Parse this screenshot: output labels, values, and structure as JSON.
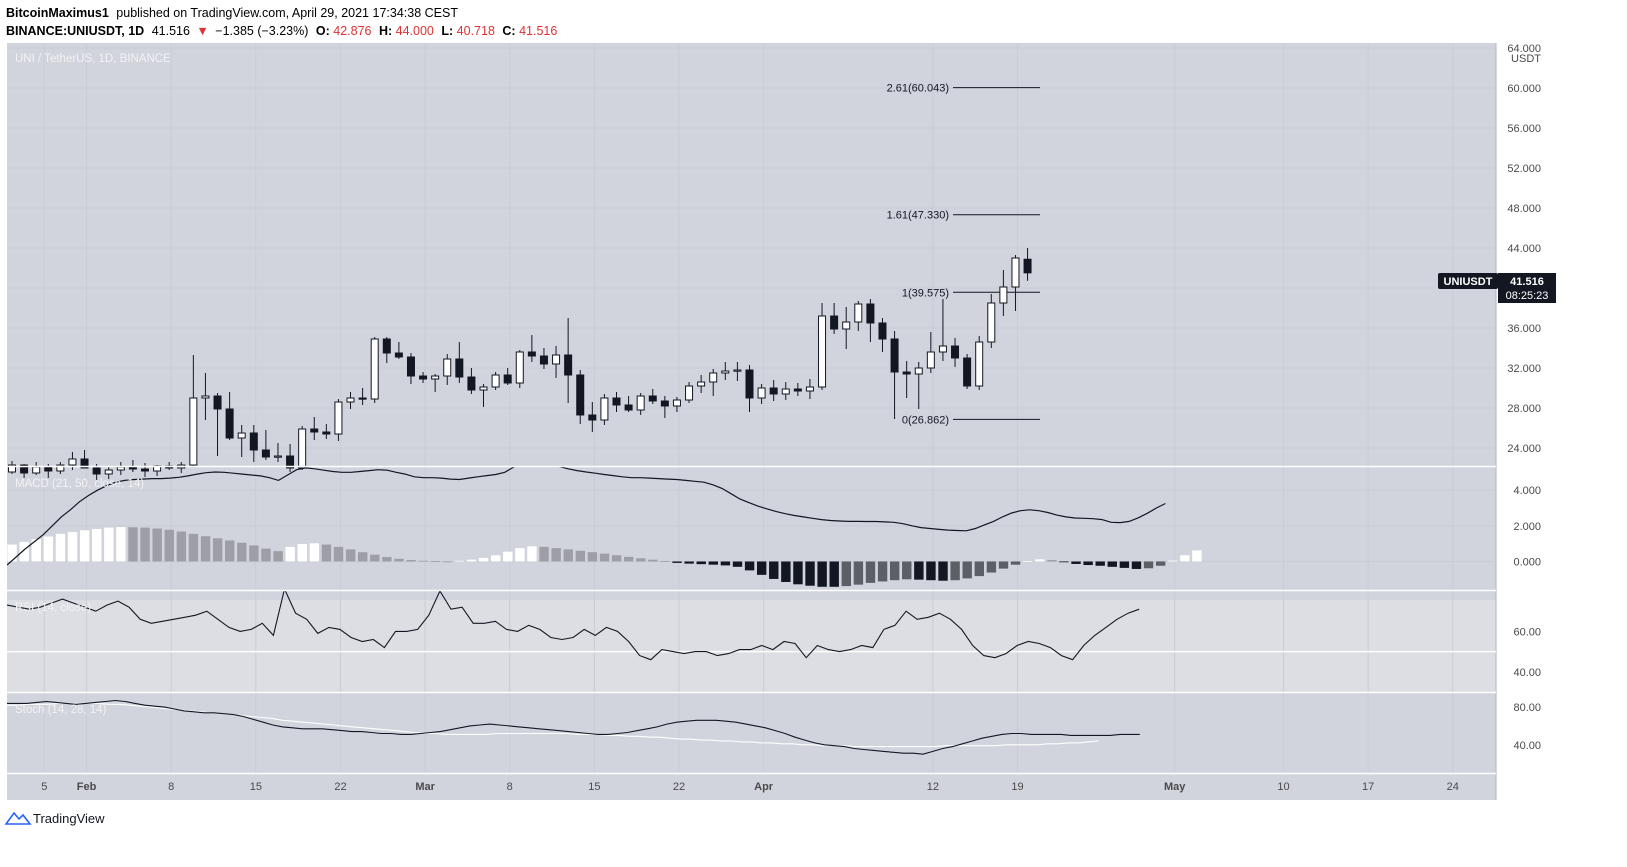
{
  "header": {
    "author": "BitcoinMaximus1",
    "published_text": "published on TradingView.com, April 29, 2021 17:34:38 CEST",
    "symbol_prefix": "BINANCE:UNIUSDT, 1D",
    "last": "41.516",
    "down_arrow": "▼",
    "change": "−1.385 (−3.23%)",
    "o_label": "O:",
    "o_value": "42.876",
    "h_label": "H:",
    "h_value": "44.000",
    "l_label": "L:",
    "l_value": "40.718",
    "c_label": "C:",
    "c_value": "41.516"
  },
  "footer": {
    "brand": "TradingView"
  },
  "colors": {
    "price_bg": "#d1d4dc",
    "bull": "#ffffff",
    "bear": "#131722",
    "hist_light": "#9e9ea6",
    "hist_dark": "#5d5f66"
  },
  "chart_data": {
    "type": "candlestick",
    "title": "UNI / TetherUS, 1D, BINANCE",
    "currency": "USDT",
    "symbol_tag": "UNIUSDT",
    "last_price_label": "41.516",
    "countdown": "08:25:23",
    "price_axis": {
      "ticks": [
        "64.000",
        "60.000",
        "56.000",
        "52.000",
        "48.000",
        "44.000",
        "40.000",
        "36.000",
        "32.000",
        "28.000",
        "24.000"
      ],
      "range": [
        22.2,
        64.5
      ]
    },
    "time_axis": {
      "labels": [
        "5",
        "Feb",
        "8",
        "15",
        "22",
        "Mar",
        "8",
        "15",
        "22",
        "Apr",
        "12",
        "19",
        "May",
        "10",
        "17",
        "24"
      ],
      "bold": [
        "Feb",
        "Mar",
        "Apr",
        "May"
      ]
    },
    "candles": [
      [
        21.6,
        22.7,
        21.4,
        22.3
      ],
      [
        22.3,
        22.4,
        21.0,
        21.5
      ],
      [
        21.5,
        22.6,
        21.3,
        22.1
      ],
      [
        22.1,
        22.4,
        21.0,
        21.7
      ],
      [
        21.7,
        22.6,
        21.4,
        22.3
      ],
      [
        22.3,
        23.6,
        21.8,
        22.9
      ],
      [
        22.9,
        23.8,
        22.2,
        22.0
      ],
      [
        22.0,
        22.4,
        20.8,
        21.4
      ],
      [
        21.4,
        22.2,
        20.9,
        21.8
      ],
      [
        21.8,
        22.6,
        21.3,
        22.1
      ],
      [
        22.1,
        22.8,
        21.6,
        21.9
      ],
      [
        21.9,
        22.5,
        21.1,
        21.7
      ],
      [
        21.7,
        22.3,
        21.2,
        22.2
      ],
      [
        22.2,
        22.6,
        21.8,
        22.0
      ],
      [
        22.0,
        22.6,
        21.5,
        22.3
      ],
      [
        22.3,
        33.3,
        22.2,
        29.0
      ],
      [
        29.0,
        31.5,
        26.8,
        29.2
      ],
      [
        29.2,
        29.5,
        23.2,
        27.9
      ],
      [
        27.9,
        29.6,
        24.8,
        25.0
      ],
      [
        25.0,
        26.3,
        23.1,
        25.5
      ],
      [
        25.5,
        26.3,
        22.6,
        23.8
      ],
      [
        23.8,
        25.8,
        22.8,
        23.1
      ],
      [
        23.1,
        24.5,
        22.6,
        23.2
      ],
      [
        23.2,
        24.4,
        21.6,
        22.0
      ],
      [
        22.0,
        26.2,
        21.8,
        25.9
      ],
      [
        25.9,
        27.1,
        24.8,
        25.6
      ],
      [
        25.6,
        26.4,
        24.9,
        25.4
      ],
      [
        25.4,
        28.9,
        24.7,
        28.6
      ],
      [
        28.6,
        29.6,
        27.9,
        29.0
      ],
      [
        29.0,
        30.0,
        28.3,
        28.9
      ],
      [
        28.9,
        35.1,
        28.5,
        34.9
      ],
      [
        34.9,
        35.1,
        32.5,
        33.5
      ],
      [
        33.5,
        34.6,
        32.9,
        33.1
      ],
      [
        33.1,
        33.5,
        30.4,
        31.2
      ],
      [
        31.2,
        31.6,
        30.5,
        30.9
      ],
      [
        30.9,
        31.4,
        29.6,
        31.2
      ],
      [
        31.2,
        33.4,
        30.3,
        32.9
      ],
      [
        32.9,
        34.6,
        30.5,
        31.1
      ],
      [
        31.1,
        32.0,
        29.4,
        29.8
      ],
      [
        29.8,
        30.4,
        28.1,
        30.1
      ],
      [
        30.1,
        31.6,
        29.8,
        31.3
      ],
      [
        31.3,
        32.0,
        30.3,
        30.5
      ],
      [
        30.5,
        33.8,
        30.0,
        33.6
      ],
      [
        33.6,
        35.3,
        32.6,
        33.2
      ],
      [
        33.2,
        34.0,
        31.9,
        32.4
      ],
      [
        32.4,
        34.2,
        31.0,
        33.3
      ],
      [
        33.3,
        37.0,
        28.5,
        31.3
      ],
      [
        31.3,
        31.8,
        26.4,
        27.3
      ],
      [
        27.3,
        28.6,
        25.6,
        26.8
      ],
      [
        26.8,
        29.4,
        26.3,
        29.0
      ],
      [
        29.0,
        29.6,
        27.6,
        28.3
      ],
      [
        28.3,
        29.2,
        27.6,
        27.8
      ],
      [
        27.8,
        29.5,
        27.3,
        29.2
      ],
      [
        29.2,
        29.9,
        28.4,
        28.7
      ],
      [
        28.7,
        29.2,
        27.0,
        28.2
      ],
      [
        28.2,
        29.1,
        27.6,
        28.8
      ],
      [
        28.8,
        30.6,
        28.5,
        30.2
      ],
      [
        30.2,
        31.3,
        29.5,
        30.6
      ],
      [
        30.6,
        31.9,
        29.2,
        31.5
      ],
      [
        31.5,
        32.6,
        30.8,
        31.7
      ],
      [
        31.7,
        32.6,
        30.7,
        31.8
      ],
      [
        31.8,
        32.3,
        27.6,
        29.0
      ],
      [
        29.0,
        30.4,
        28.4,
        30.0
      ],
      [
        30.0,
        30.8,
        28.7,
        29.4
      ],
      [
        29.4,
        30.6,
        28.8,
        29.9
      ],
      [
        29.9,
        30.5,
        29.2,
        29.7
      ],
      [
        29.7,
        30.9,
        28.9,
        30.1
      ],
      [
        30.1,
        38.5,
        29.8,
        37.2
      ],
      [
        37.2,
        38.5,
        35.4,
        35.9
      ],
      [
        35.9,
        38.1,
        33.9,
        36.6
      ],
      [
        36.6,
        38.7,
        35.7,
        38.4
      ],
      [
        38.4,
        38.9,
        34.6,
        36.5
      ],
      [
        36.5,
        37.0,
        33.6,
        34.9
      ],
      [
        34.9,
        35.7,
        26.9,
        31.6
      ],
      [
        31.6,
        32.7,
        29.0,
        31.4
      ],
      [
        31.4,
        32.6,
        27.9,
        32.0
      ],
      [
        32.0,
        35.6,
        31.5,
        33.6
      ],
      [
        33.6,
        38.9,
        32.7,
        34.2
      ],
      [
        34.2,
        35.0,
        32.1,
        33.0
      ],
      [
        33.0,
        33.4,
        29.9,
        30.2
      ],
      [
        30.2,
        35.2,
        29.8,
        34.6
      ],
      [
        34.6,
        39.4,
        34.0,
        38.5
      ],
      [
        38.5,
        41.8,
        37.2,
        40.1
      ],
      [
        40.1,
        43.3,
        37.7,
        43.0
      ],
      [
        42.876,
        44.0,
        40.718,
        41.516
      ]
    ],
    "fib_levels": [
      {
        "label": "2.61(60.043)",
        "value": 60.043
      },
      {
        "label": "1.61(47.330)",
        "value": 47.33
      },
      {
        "label": "1(39.575)",
        "value": 39.575
      },
      {
        "label": "0(26.862)",
        "value": 26.862
      }
    ],
    "macd": {
      "label": "MACD (21, 50, close, 14)",
      "ticks": [
        "4.000",
        "2.000",
        "0.000"
      ],
      "range": [
        -1.6,
        5.3
      ],
      "line": [
        -0.2,
        0.25,
        0.7,
        1.1,
        1.5,
        2.0,
        2.5,
        2.9,
        3.35,
        3.7,
        4.0,
        4.25,
        4.45,
        4.55,
        4.6,
        4.62,
        4.65,
        4.65,
        4.68,
        4.72,
        4.8,
        4.9,
        4.98,
        5.02,
        5.0,
        4.95,
        4.9,
        4.85,
        4.8,
        4.7,
        4.55,
        4.85,
        5.15,
        5.25,
        5.2,
        5.12,
        5.05,
        5.0,
        5.0,
        5.05,
        5.1,
        5.15,
        5.12,
        5.0,
        4.9,
        4.75,
        4.7,
        4.7,
        4.68,
        4.62,
        4.6,
        4.68,
        4.75,
        4.82,
        4.88,
        5.0,
        5.3,
        5.55,
        5.7,
        5.62,
        5.48,
        5.32,
        5.2,
        5.1,
        5.02,
        4.95,
        4.88,
        4.82,
        4.75,
        4.7,
        4.7,
        4.68,
        4.65,
        4.62,
        4.6,
        4.55,
        4.5,
        4.45,
        4.3,
        4.1,
        3.8,
        3.5,
        3.3,
        3.1,
        2.95,
        2.8,
        2.68,
        2.58,
        2.5,
        2.42,
        2.35,
        2.3,
        2.27,
        2.25,
        2.25,
        2.24,
        2.24,
        2.22,
        2.2,
        2.12,
        2.0,
        1.9,
        1.85,
        1.8,
        1.76,
        1.74,
        1.72,
        1.85,
        2.05,
        2.25,
        2.5,
        2.72,
        2.85,
        2.9,
        2.85,
        2.75,
        2.6,
        2.5,
        2.44,
        2.42,
        2.4,
        2.35,
        2.2,
        2.18,
        2.25,
        2.45,
        2.7,
        3.0,
        3.25
      ],
      "hist": [
        0.95,
        1.1,
        1.25,
        1.4,
        1.55,
        1.65,
        1.75,
        1.82,
        1.9,
        1.93,
        1.92,
        1.9,
        1.85,
        1.78,
        1.68,
        1.55,
        1.42,
        1.3,
        1.18,
        1.05,
        0.9,
        0.72,
        0.58,
        0.82,
        0.98,
        1.02,
        0.95,
        0.82,
        0.68,
        0.52,
        0.38,
        0.25,
        0.15,
        0.08,
        0.04,
        0.02,
        0.0,
        0.04,
        0.1,
        0.2,
        0.35,
        0.55,
        0.75,
        0.85,
        0.82,
        0.75,
        0.68,
        0.6,
        0.52,
        0.44,
        0.35,
        0.26,
        0.18,
        0.1,
        0.02,
        -0.08,
        -0.12,
        -0.15,
        -0.18,
        -0.22,
        -0.3,
        -0.5,
        -0.75,
        -0.98,
        -1.15,
        -1.28,
        -1.36,
        -1.42,
        -1.42,
        -1.38,
        -1.3,
        -1.2,
        -1.12,
        -1.05,
        -1.0,
        -1.02,
        -1.05,
        -1.08,
        -1.05,
        -0.95,
        -0.82,
        -0.62,
        -0.4,
        -0.18,
        0.02,
        0.12,
        0.08,
        -0.04,
        -0.14,
        -0.2,
        -0.24,
        -0.3,
        -0.36,
        -0.42,
        -0.38,
        -0.24,
        0.05,
        0.35,
        0.62
      ],
      "hist_dark_from": 61
    },
    "rsi": {
      "label": "RSI (14, close)",
      "ticks": [
        "60.00",
        "40.00"
      ],
      "range": [
        30,
        80
      ],
      "band": 50,
      "values": [
        73,
        72,
        71,
        72,
        74,
        76,
        74,
        72,
        70,
        73,
        75,
        72,
        66,
        64,
        65,
        66,
        67,
        68,
        70,
        66,
        62,
        60,
        61,
        64,
        58,
        81,
        69,
        66,
        59,
        62,
        61,
        57,
        55,
        56,
        52,
        60,
        60,
        61,
        68,
        80,
        71,
        72,
        64,
        64,
        65,
        61,
        60,
        63,
        61,
        57,
        56,
        57,
        61,
        58,
        62,
        60,
        55,
        48,
        46,
        51,
        50,
        49,
        50,
        50,
        48,
        49,
        51,
        51,
        53,
        51,
        55,
        54,
        47,
        53,
        51,
        50,
        51,
        53,
        52,
        61,
        63,
        70,
        66,
        67,
        69,
        66,
        61,
        53,
        48,
        47,
        49,
        53,
        55,
        54,
        52,
        48,
        46,
        53,
        58,
        62,
        66,
        69,
        71
      ]
    },
    "stoch": {
      "label": "Stoch (14, 28, 14)",
      "ticks": [
        "80.00",
        "40.00"
      ],
      "range": [
        10,
        95
      ],
      "k": [
        84,
        84,
        84,
        85,
        86,
        85,
        84,
        83,
        84,
        85,
        86,
        87,
        86,
        84,
        82,
        81,
        80,
        78,
        76,
        75,
        74,
        74,
        73,
        72,
        70,
        67,
        64,
        61,
        59,
        58,
        57,
        57,
        57,
        56,
        55,
        54,
        54,
        53,
        52,
        52,
        51,
        51,
        52,
        53,
        54,
        56,
        58,
        60,
        61,
        62,
        61,
        60,
        59,
        58,
        57,
        56,
        55,
        54,
        53,
        52,
        51,
        51,
        52,
        53,
        55,
        57,
        59,
        62,
        64,
        65,
        66,
        66,
        66,
        65,
        64,
        62,
        60,
        58,
        55,
        52,
        48,
        45,
        42,
        40,
        39,
        38,
        36,
        35,
        34,
        33,
        32,
        31,
        31,
        30,
        33,
        36,
        38,
        41,
        44,
        47,
        49,
        51,
        52,
        52,
        51,
        51,
        51,
        51,
        50,
        50,
        50,
        50,
        50,
        51,
        51,
        51
      ],
      "d": [
        82,
        82,
        83,
        83,
        83,
        84,
        84,
        84,
        84,
        84,
        83,
        83,
        82,
        81,
        80,
        79,
        78,
        77,
        76,
        75,
        74,
        73,
        72,
        71,
        70,
        69,
        68,
        66,
        65,
        64,
        63,
        62,
        61,
        60,
        59,
        58,
        57,
        56,
        55,
        54,
        53,
        52,
        52,
        51,
        51,
        51,
        51,
        51,
        52,
        52,
        52,
        52,
        52,
        52,
        52,
        52,
        51,
        51,
        51,
        50,
        50,
        49,
        49,
        48,
        48,
        47,
        46,
        46,
        45,
        45,
        44,
        44,
        43,
        43,
        42,
        42,
        41,
        41,
        40,
        40,
        39,
        39,
        39,
        38,
        38,
        38,
        38,
        38,
        38,
        38,
        38,
        38,
        39,
        39,
        39,
        39,
        39,
        39,
        40,
        40,
        40,
        40,
        41,
        41,
        42,
        42,
        43,
        44
      ]
    }
  }
}
